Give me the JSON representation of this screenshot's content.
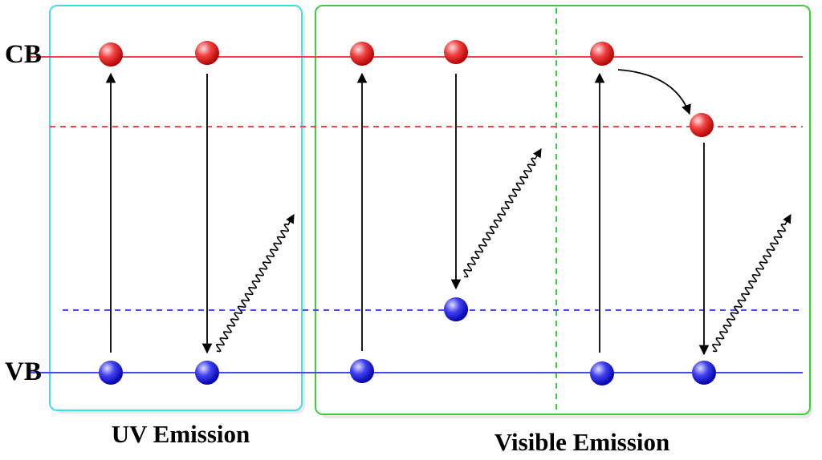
{
  "labels": {
    "cb": "CB",
    "vb": "VB",
    "uv_emission": "UV Emission",
    "visible_emission": "Visible Emission"
  },
  "colors": {
    "conduction_band": "#f04848",
    "valence_band": "#4848f0",
    "uv_panel_border": "#40dce8",
    "visible_panel_border": "#3ccf3c",
    "divider": "#3ccf3c",
    "electron": "#e01818",
    "hole": "#1a1ae0",
    "arrow": "#000000"
  }
}
